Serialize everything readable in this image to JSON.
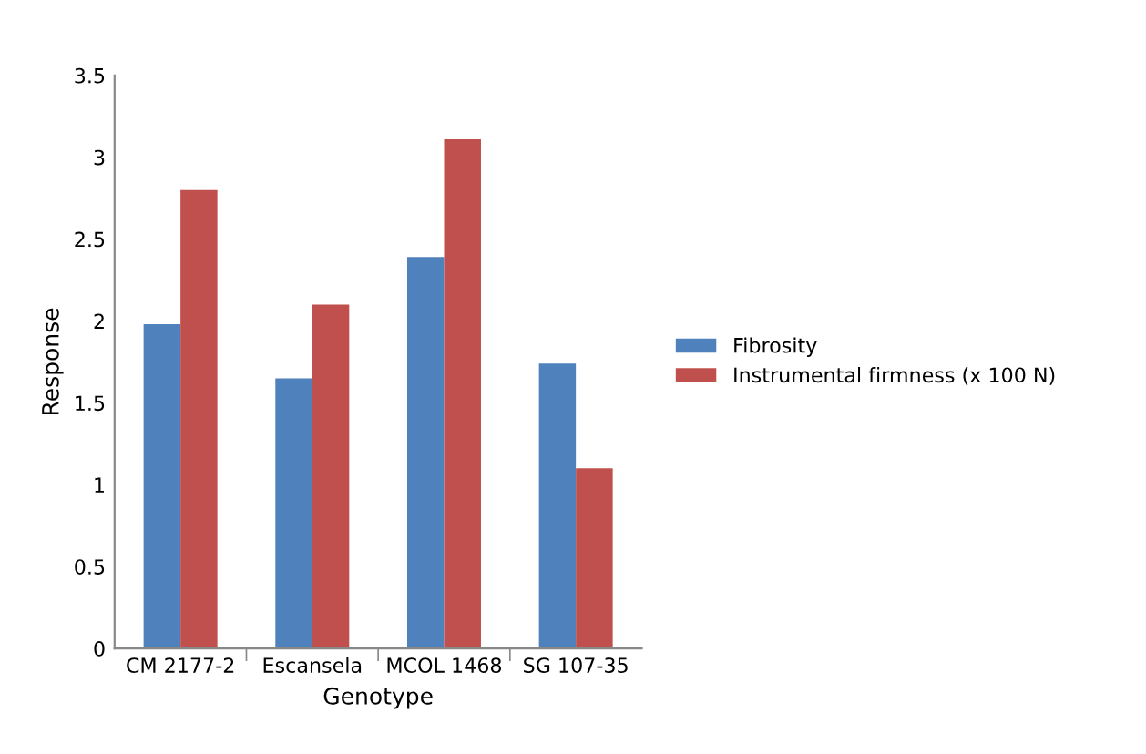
{
  "chart_data": {
    "type": "bar",
    "xlabel": "Genotype",
    "ylabel": "Response",
    "categories": [
      "CM 2177-2",
      "Escansela",
      "MCOL 1468",
      "SG 107-35"
    ],
    "series": [
      {
        "name": "Fibrosity",
        "color": "#4f81bd",
        "values": [
          1.98,
          1.65,
          2.39,
          1.74
        ]
      },
      {
        "name": "Instrumental firmness (x 100 N)",
        "color": "#c0504d",
        "values": [
          2.8,
          2.1,
          3.11,
          1.1
        ]
      }
    ],
    "ylim": [
      0,
      3.5
    ],
    "yticks": [
      0,
      0.5,
      1,
      1.5,
      2,
      2.5,
      3,
      3.5
    ],
    "grid": false,
    "legend": "right"
  }
}
